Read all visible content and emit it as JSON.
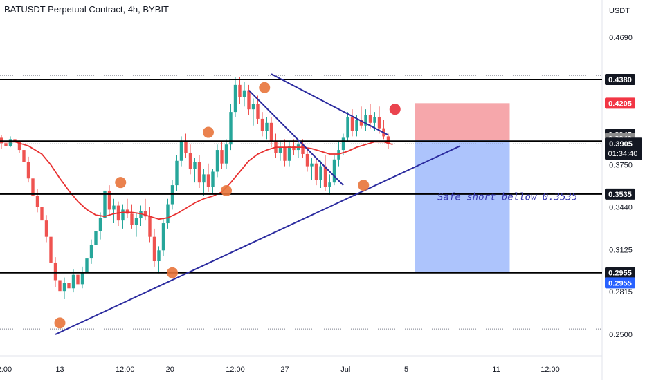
{
  "header": {
    "title": "BATUSDT Perpetual Contract, 4h, BYBIT"
  },
  "chart_data": {
    "type": "candlestick",
    "currency": "USDT",
    "y_ticks": [
      "0.4690",
      "0.3750",
      "0.3440",
      "0.3125",
      "0.2815",
      "0.2500"
    ],
    "x_ticks": [
      {
        "label": "12:00",
        "t": 0.2
      },
      {
        "label": "13",
        "t": 13
      },
      {
        "label": "12:00",
        "t": 27.5
      },
      {
        "label": "20",
        "t": 37.5
      },
      {
        "label": "12:00",
        "t": 52
      },
      {
        "label": "27",
        "t": 63
      },
      {
        "label": "Jul",
        "t": 76.5
      },
      {
        "label": "5",
        "t": 90
      },
      {
        "label": "11",
        "t": 110
      },
      {
        "label": "12:00",
        "t": 122
      }
    ],
    "candles": [
      [
        0.395,
        0.397,
        0.387,
        0.391
      ],
      [
        0.391,
        0.394,
        0.386,
        0.389
      ],
      [
        0.389,
        0.396,
        0.388,
        0.394
      ],
      [
        0.394,
        0.399,
        0.39,
        0.392
      ],
      [
        0.392,
        0.393,
        0.384,
        0.386
      ],
      [
        0.386,
        0.389,
        0.374,
        0.377
      ],
      [
        0.377,
        0.381,
        0.362,
        0.365
      ],
      [
        0.365,
        0.368,
        0.35,
        0.352
      ],
      [
        0.352,
        0.357,
        0.34,
        0.344
      ],
      [
        0.344,
        0.35,
        0.33,
        0.334
      ],
      [
        0.334,
        0.338,
        0.318,
        0.322
      ],
      [
        0.322,
        0.326,
        0.3,
        0.303
      ],
      [
        0.303,
        0.307,
        0.285,
        0.29
      ],
      [
        0.29,
        0.296,
        0.278,
        0.282
      ],
      [
        0.282,
        0.292,
        0.276,
        0.288
      ],
      [
        0.288,
        0.296,
        0.282,
        0.284
      ],
      [
        0.284,
        0.298,
        0.281,
        0.294
      ],
      [
        0.294,
        0.299,
        0.283,
        0.287
      ],
      [
        0.287,
        0.3,
        0.284,
        0.296
      ],
      [
        0.296,
        0.31,
        0.292,
        0.306
      ],
      [
        0.306,
        0.32,
        0.302,
        0.316
      ],
      [
        0.316,
        0.33,
        0.31,
        0.326
      ],
      [
        0.326,
        0.34,
        0.32,
        0.336
      ],
      [
        0.336,
        0.362,
        0.332,
        0.356
      ],
      [
        0.356,
        0.36,
        0.338,
        0.342
      ],
      [
        0.342,
        0.35,
        0.332,
        0.345
      ],
      [
        0.345,
        0.348,
        0.33,
        0.334
      ],
      [
        0.334,
        0.346,
        0.328,
        0.342
      ],
      [
        0.342,
        0.35,
        0.336,
        0.339
      ],
      [
        0.339,
        0.346,
        0.328,
        0.331
      ],
      [
        0.331,
        0.34,
        0.322,
        0.336
      ],
      [
        0.336,
        0.345,
        0.33,
        0.341
      ],
      [
        0.341,
        0.35,
        0.334,
        0.337
      ],
      [
        0.337,
        0.344,
        0.318,
        0.322
      ],
      [
        0.322,
        0.328,
        0.3,
        0.304
      ],
      [
        0.304,
        0.315,
        0.295,
        0.312
      ],
      [
        0.312,
        0.336,
        0.308,
        0.332
      ],
      [
        0.332,
        0.35,
        0.328,
        0.346
      ],
      [
        0.346,
        0.364,
        0.342,
        0.36
      ],
      [
        0.36,
        0.382,
        0.356,
        0.378
      ],
      [
        0.378,
        0.396,
        0.374,
        0.392
      ],
      [
        0.392,
        0.398,
        0.38,
        0.384
      ],
      [
        0.384,
        0.39,
        0.368,
        0.372
      ],
      [
        0.372,
        0.38,
        0.362,
        0.377
      ],
      [
        0.377,
        0.382,
        0.358,
        0.362
      ],
      [
        0.362,
        0.372,
        0.352,
        0.368
      ],
      [
        0.368,
        0.376,
        0.355,
        0.359
      ],
      [
        0.359,
        0.372,
        0.354,
        0.37
      ],
      [
        0.37,
        0.39,
        0.366,
        0.386
      ],
      [
        0.386,
        0.392,
        0.372,
        0.376
      ],
      [
        0.376,
        0.394,
        0.372,
        0.39
      ],
      [
        0.39,
        0.42,
        0.386,
        0.414
      ],
      [
        0.414,
        0.44,
        0.41,
        0.434
      ],
      [
        0.434,
        0.44,
        0.42,
        0.425
      ],
      [
        0.425,
        0.436,
        0.418,
        0.43
      ],
      [
        0.43,
        0.434,
        0.412,
        0.416
      ],
      [
        0.416,
        0.424,
        0.404,
        0.42
      ],
      [
        0.42,
        0.426,
        0.405,
        0.409
      ],
      [
        0.409,
        0.414,
        0.396,
        0.4
      ],
      [
        0.4,
        0.41,
        0.394,
        0.406
      ],
      [
        0.406,
        0.41,
        0.388,
        0.392
      ],
      [
        0.392,
        0.398,
        0.38,
        0.384
      ],
      [
        0.384,
        0.392,
        0.378,
        0.388
      ],
      [
        0.388,
        0.394,
        0.374,
        0.378
      ],
      [
        0.378,
        0.392,
        0.374,
        0.389
      ],
      [
        0.389,
        0.394,
        0.382,
        0.386
      ],
      [
        0.386,
        0.392,
        0.38,
        0.39
      ],
      [
        0.39,
        0.394,
        0.38,
        0.383
      ],
      [
        0.383,
        0.386,
        0.37,
        0.374
      ],
      [
        0.374,
        0.38,
        0.364,
        0.376
      ],
      [
        0.376,
        0.38,
        0.36,
        0.364
      ],
      [
        0.364,
        0.378,
        0.358,
        0.374
      ],
      [
        0.374,
        0.382,
        0.356,
        0.359
      ],
      [
        0.359,
        0.368,
        0.353,
        0.362
      ],
      [
        0.362,
        0.382,
        0.36,
        0.379
      ],
      [
        0.379,
        0.392,
        0.374,
        0.386
      ],
      [
        0.386,
        0.398,
        0.382,
        0.395
      ],
      [
        0.395,
        0.414,
        0.392,
        0.41
      ],
      [
        0.41,
        0.416,
        0.396,
        0.4
      ],
      [
        0.4,
        0.412,
        0.396,
        0.408
      ],
      [
        0.408,
        0.418,
        0.402,
        0.404
      ],
      [
        0.404,
        0.416,
        0.4,
        0.412
      ],
      [
        0.412,
        0.42,
        0.402,
        0.406
      ],
      [
        0.406,
        0.414,
        0.4,
        0.41
      ],
      [
        0.41,
        0.418,
        0.398,
        0.402
      ],
      [
        0.402,
        0.408,
        0.394,
        0.396
      ],
      [
        0.396,
        0.398,
        0.387,
        0.3905
      ]
    ],
    "ma_line": [
      [
        0,
        0.392
      ],
      [
        3,
        0.392
      ],
      [
        6,
        0.389
      ],
      [
        9,
        0.383
      ],
      [
        11,
        0.375
      ],
      [
        13,
        0.365
      ],
      [
        15,
        0.356
      ],
      [
        17,
        0.348
      ],
      [
        19,
        0.342
      ],
      [
        21,
        0.338
      ],
      [
        23,
        0.337
      ],
      [
        25,
        0.339
      ],
      [
        27,
        0.34
      ],
      [
        29,
        0.34
      ],
      [
        31,
        0.339
      ],
      [
        33,
        0.337
      ],
      [
        35,
        0.335
      ],
      [
        37,
        0.336
      ],
      [
        39,
        0.339
      ],
      [
        41,
        0.343
      ],
      [
        43,
        0.347
      ],
      [
        45,
        0.35
      ],
      [
        47,
        0.352
      ],
      [
        49,
        0.355
      ],
      [
        51,
        0.362
      ],
      [
        53,
        0.37
      ],
      [
        55,
        0.378
      ],
      [
        57,
        0.383
      ],
      [
        59,
        0.386
      ],
      [
        61,
        0.388
      ],
      [
        63,
        0.388
      ],
      [
        65,
        0.388
      ],
      [
        67,
        0.388
      ],
      [
        69,
        0.387
      ],
      [
        71,
        0.385
      ],
      [
        73,
        0.383
      ],
      [
        75,
        0.383
      ],
      [
        77,
        0.385
      ],
      [
        79,
        0.388
      ],
      [
        81,
        0.39
      ],
      [
        83,
        0.392
      ],
      [
        85,
        0.392
      ],
      [
        87,
        0.39
      ]
    ],
    "horizontal_levels": [
      0.438,
      0.3925,
      0.3535,
      0.2955
    ],
    "dotted_levels": [
      0.441,
      0.3905,
      0.254
    ],
    "trendlines": [
      {
        "from": [
          12,
          0.25
        ],
        "to": [
          102,
          0.389
        ]
      },
      {
        "from": [
          60,
          0.442
        ],
        "to": [
          86,
          0.397
        ]
      },
      {
        "from": [
          55,
          0.43
        ],
        "to": [
          76,
          0.36
        ]
      }
    ],
    "pivot_markers": [
      {
        "t": 13,
        "v": 0.2585,
        "color": "#e8743b"
      },
      {
        "t": 26.5,
        "v": 0.362,
        "color": "#e8743b"
      },
      {
        "t": 38,
        "v": 0.2955,
        "color": "#e8743b"
      },
      {
        "t": 46,
        "v": 0.399,
        "color": "#e8743b"
      },
      {
        "t": 50,
        "v": 0.356,
        "color": "#e8743b"
      },
      {
        "t": 58.5,
        "v": 0.432,
        "color": "#e8743b"
      },
      {
        "t": 80.5,
        "v": 0.36,
        "color": "#e8743b"
      },
      {
        "t": 87.5,
        "v": 0.416,
        "color": "#e8303b"
      }
    ],
    "position": {
      "t_start": 92,
      "t_end": 113,
      "stop": 0.4205,
      "entry": 0.3935,
      "target": 0.2955,
      "stop_color": "#f5a2a6",
      "target_color": "#a9c1fc"
    },
    "note": {
      "text": "Safe short bellow 0.3535",
      "t": 112.5,
      "v": 0.349
    },
    "price_badges": [
      {
        "text": "0.4380",
        "v": 0.438,
        "bg": "#131722",
        "fg": "#ffffff"
      },
      {
        "text": "0.4205",
        "v": 0.4205,
        "bg": "#f23645",
        "fg": "#ffffff"
      },
      {
        "text": "0.3945",
        "v": 0.3975,
        "bg": "#131722",
        "fg": "#ffffff"
      },
      {
        "text": "0.3940",
        "v": 0.3945,
        "bg": "#8c8c8c",
        "fg": "#ffffff"
      },
      {
        "text": "0.3925",
        "v": 0.3865,
        "bg": "#f23645",
        "fg": "#ffffff"
      },
      {
        "text": "0.3535",
        "v": 0.3535,
        "bg": "#131722",
        "fg": "#ffffff"
      },
      {
        "text": "0.2955",
        "v": 0.2955,
        "bg": "#131722",
        "fg": "#ffffff"
      },
      {
        "text": "0.2955",
        "v": 0.288,
        "bg": "#2962ff",
        "fg": "#ffffff"
      }
    ],
    "last_price": {
      "price": "0.3905",
      "countdown": "01:34:40",
      "v": 0.3905
    },
    "colors": {
      "up": "#26a69a",
      "down": "#ef5350",
      "ma": "#e83030",
      "trend": "#2b2b9f",
      "level": "#000000"
    }
  }
}
